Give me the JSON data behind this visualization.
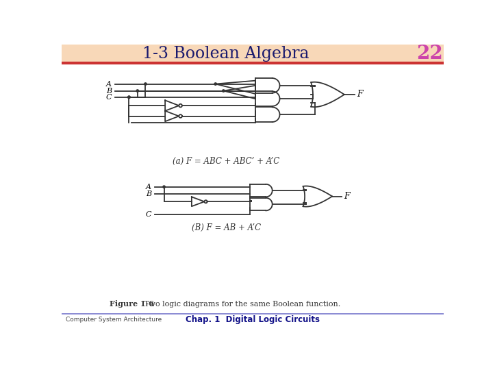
{
  "title": "1-3 Boolean Algebra",
  "page_num": "22",
  "footer_left": "Computer System Architecture",
  "footer_center": "Chap. 1  Digital Logic Circuits",
  "fig_caption_bold": "Figure 1-6",
  "fig_caption_rest": "   Two logic diagrams for the same Boolean function.",
  "caption_a": "(a) F = ABC + ABC’ + A’C",
  "caption_b": "(B) F = AB + A’C",
  "bg_color": "#ffffff",
  "title_color": "#1a1a6e",
  "line_color": "#333333",
  "header_gradient_left": "#f5d5b0",
  "header_gradient_right": "#f5c090",
  "header_red_line": "#cc3333",
  "footer_line_color": "#7777cc",
  "footer_left_color": "#444444",
  "footer_center_color": "#111188",
  "page_num_color": "#cc44aa"
}
